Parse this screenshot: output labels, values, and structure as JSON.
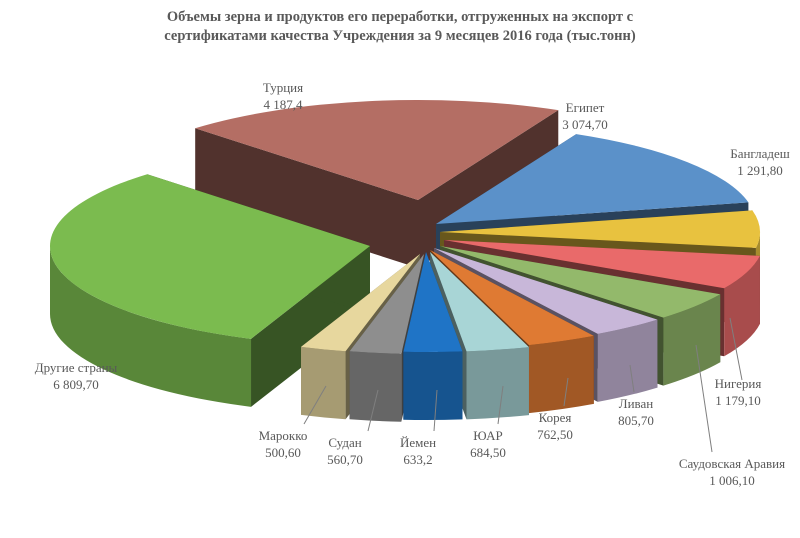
{
  "chart_data": {
    "type": "pie",
    "title_line1": "Объемы зерна и продуктов его переработки, отгруженных на экспорт с",
    "title_line2": "сертификатами качества Учреждения за 9 месяцев 2016 года (тыс.тонн)",
    "slices": [
      {
        "name": "Египет",
        "value_label": "3 074,70",
        "value": 3074.7,
        "color": "#5b91c9"
      },
      {
        "name": "Бангладеш",
        "value_label": "1 291,80",
        "value": 1291.8,
        "color": "#e8c23f"
      },
      {
        "name": "Нигерия",
        "value_label": "1 179,10",
        "value": 1179.1,
        "color": "#e96a6a"
      },
      {
        "name": "Саудовская Аравия",
        "value_label": "1 006,10",
        "value": 1006.1,
        "color": "#93b96b"
      },
      {
        "name": "Ливан",
        "value_label": "805,70",
        "value": 805.7,
        "color": "#c8b7d9"
      },
      {
        "name": "Корея",
        "value_label": "762,50",
        "value": 762.5,
        "color": "#df7a33"
      },
      {
        "name": "ЮАР",
        "value_label": "684,50",
        "value": 684.5,
        "color": "#a8d5d6"
      },
      {
        "name": "Йемен",
        "value_label": "633,2",
        "value": 633.2,
        "color": "#1f74c6"
      },
      {
        "name": "Судан",
        "value_label": "560,70",
        "value": 560.7,
        "color": "#8e8e8e"
      },
      {
        "name": "Марокко",
        "value_label": "500,60",
        "value": 500.6,
        "color": "#e7d79e"
      },
      {
        "name": "Другие страны",
        "value_label": "6 809,70",
        "value": 6809.7,
        "color": "#7bbb4f"
      },
      {
        "name": "Турция",
        "value_label": "4 187,4",
        "value": 4187.4,
        "color": "#b46e64"
      }
    ]
  }
}
